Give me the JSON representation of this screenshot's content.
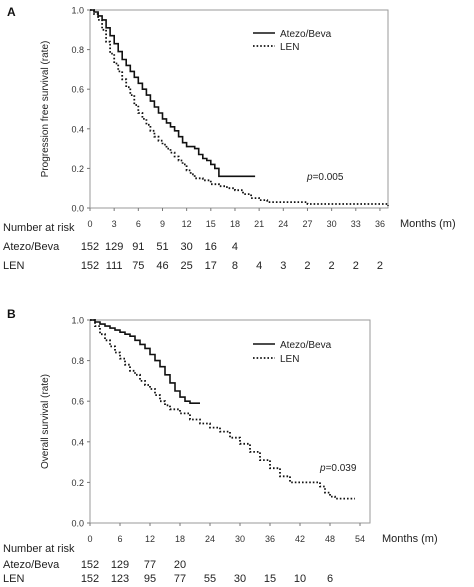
{
  "chart_data": [
    {
      "panel": "A",
      "type": "line",
      "ylabel": "Progression free survival (rate)",
      "xlabel": "Months (m)",
      "xticks": [
        0,
        3,
        6,
        9,
        12,
        15,
        18,
        21,
        24,
        27,
        30,
        33,
        36
      ],
      "yticks": [
        "0.0",
        "0.2",
        "0.4",
        "0.6",
        "0.8",
        "1.0"
      ],
      "xlim": [
        0,
        37
      ],
      "ylim": [
        0,
        1
      ],
      "legend_position": "top-right",
      "annotation": {
        "prefix": "p",
        "value": "=0.005"
      },
      "series": [
        {
          "name": "Atezo/Beva",
          "style": "solid",
          "points": [
            [
              0,
              1.0
            ],
            [
              0.5,
              0.99
            ],
            [
              1,
              0.97
            ],
            [
              1.5,
              0.95
            ],
            [
              2,
              0.91
            ],
            [
              2.5,
              0.87
            ],
            [
              3,
              0.83
            ],
            [
              3.5,
              0.79
            ],
            [
              4,
              0.75
            ],
            [
              4.5,
              0.72
            ],
            [
              5,
              0.69
            ],
            [
              5.5,
              0.66
            ],
            [
              6,
              0.63
            ],
            [
              6.5,
              0.6
            ],
            [
              7,
              0.57
            ],
            [
              7.5,
              0.54
            ],
            [
              8,
              0.51
            ],
            [
              8.5,
              0.48
            ],
            [
              9,
              0.45
            ],
            [
              9.5,
              0.43
            ],
            [
              10,
              0.41
            ],
            [
              10.5,
              0.39
            ],
            [
              11,
              0.36
            ],
            [
              11.5,
              0.33
            ],
            [
              12,
              0.31
            ],
            [
              13,
              0.3
            ],
            [
              13.5,
              0.27
            ],
            [
              14,
              0.25
            ],
            [
              14.5,
              0.24
            ],
            [
              15,
              0.22
            ],
            [
              15.5,
              0.2
            ],
            [
              16,
              0.16
            ],
            [
              20.5,
              0.16
            ]
          ]
        },
        {
          "name": "LEN",
          "style": "dotted",
          "points": [
            [
              0,
              1.0
            ],
            [
              0.5,
              0.98
            ],
            [
              1,
              0.95
            ],
            [
              1.5,
              0.9
            ],
            [
              2,
              0.84
            ],
            [
              2.5,
              0.78
            ],
            [
              3,
              0.73
            ],
            [
              3.5,
              0.69
            ],
            [
              4,
              0.65
            ],
            [
              4.5,
              0.61
            ],
            [
              5,
              0.57
            ],
            [
              5.5,
              0.52
            ],
            [
              6,
              0.48
            ],
            [
              6.5,
              0.45
            ],
            [
              7,
              0.42
            ],
            [
              7.5,
              0.39
            ],
            [
              8,
              0.36
            ],
            [
              8.5,
              0.34
            ],
            [
              9,
              0.32
            ],
            [
              9.5,
              0.3
            ],
            [
              10,
              0.28
            ],
            [
              10.5,
              0.26
            ],
            [
              11,
              0.24
            ],
            [
              11.5,
              0.22
            ],
            [
              12,
              0.19
            ],
            [
              12.5,
              0.17
            ],
            [
              13,
              0.15
            ],
            [
              14,
              0.14
            ],
            [
              15,
              0.12
            ],
            [
              16,
              0.11
            ],
            [
              17,
              0.1
            ],
            [
              18,
              0.09
            ],
            [
              19,
              0.07
            ],
            [
              20,
              0.05
            ],
            [
              21,
              0.04
            ],
            [
              22,
              0.03
            ],
            [
              24,
              0.03
            ],
            [
              27,
              0.02
            ],
            [
              37,
              0.01
            ]
          ]
        }
      ],
      "risk_table": {
        "header": "Number at risk",
        "rows": [
          {
            "label": "Atezo/Beva",
            "values": [
              "152",
              "129",
              "91",
              "51",
              "30",
              "16",
              "4"
            ]
          },
          {
            "label": "LEN",
            "values": [
              "152",
              "111",
              "75",
              "46",
              "25",
              "17",
              "8",
              "4",
              "3",
              "2",
              "2",
              "2",
              "2"
            ]
          }
        ]
      }
    },
    {
      "panel": "B",
      "type": "line",
      "ylabel": "Overall survival (rate)",
      "xlabel": "Months (m)",
      "xticks": [
        0,
        6,
        12,
        18,
        24,
        30,
        36,
        42,
        48,
        54
      ],
      "yticks": [
        "0.0",
        "0.2",
        "0.4",
        "0.6",
        "0.8",
        "1.0"
      ],
      "xlim": [
        0,
        56
      ],
      "ylim": [
        0,
        1
      ],
      "legend_position": "top-right",
      "annotation": {
        "prefix": "p",
        "value": "=0.039"
      },
      "series": [
        {
          "name": "Atezo/Beva",
          "style": "solid",
          "points": [
            [
              0,
              1.0
            ],
            [
              1,
              0.99
            ],
            [
              2,
              0.98
            ],
            [
              3,
              0.97
            ],
            [
              4,
              0.96
            ],
            [
              5,
              0.95
            ],
            [
              6,
              0.94
            ],
            [
              7,
              0.93
            ],
            [
              8,
              0.92
            ],
            [
              9,
              0.9
            ],
            [
              10,
              0.88
            ],
            [
              11,
              0.86
            ],
            [
              12,
              0.83
            ],
            [
              13,
              0.8
            ],
            [
              14,
              0.77
            ],
            [
              15,
              0.73
            ],
            [
              16,
              0.69
            ],
            [
              17,
              0.65
            ],
            [
              18,
              0.62
            ],
            [
              19,
              0.6
            ],
            [
              20,
              0.59
            ],
            [
              22,
              0.59
            ]
          ]
        },
        {
          "name": "LEN",
          "style": "dotted",
          "points": [
            [
              0,
              1.0
            ],
            [
              1,
              0.97
            ],
            [
              2,
              0.93
            ],
            [
              3,
              0.9
            ],
            [
              4,
              0.87
            ],
            [
              5,
              0.84
            ],
            [
              6,
              0.81
            ],
            [
              7,
              0.78
            ],
            [
              8,
              0.75
            ],
            [
              9,
              0.73
            ],
            [
              10,
              0.7
            ],
            [
              11,
              0.68
            ],
            [
              12,
              0.66
            ],
            [
              13,
              0.63
            ],
            [
              14,
              0.6
            ],
            [
              15,
              0.58
            ],
            [
              16,
              0.56
            ],
            [
              18,
              0.54
            ],
            [
              20,
              0.51
            ],
            [
              22,
              0.49
            ],
            [
              24,
              0.47
            ],
            [
              26,
              0.45
            ],
            [
              28,
              0.42
            ],
            [
              30,
              0.39
            ],
            [
              32,
              0.35
            ],
            [
              34,
              0.31
            ],
            [
              36,
              0.27
            ],
            [
              38,
              0.23
            ],
            [
              40,
              0.2
            ],
            [
              42,
              0.2
            ],
            [
              44,
              0.2
            ],
            [
              46,
              0.18
            ],
            [
              47,
              0.15
            ],
            [
              48,
              0.13
            ],
            [
              49,
              0.12
            ],
            [
              53,
              0.12
            ]
          ]
        }
      ],
      "risk_table": {
        "header": "Number at risk",
        "rows": [
          {
            "label": "Atezo/Beva",
            "values": [
              "152",
              "129",
              "77",
              "20"
            ]
          },
          {
            "label": "LEN",
            "values": [
              "152",
              "123",
              "95",
              "77",
              "55",
              "30",
              "15",
              "10",
              "6"
            ]
          }
        ]
      }
    }
  ]
}
